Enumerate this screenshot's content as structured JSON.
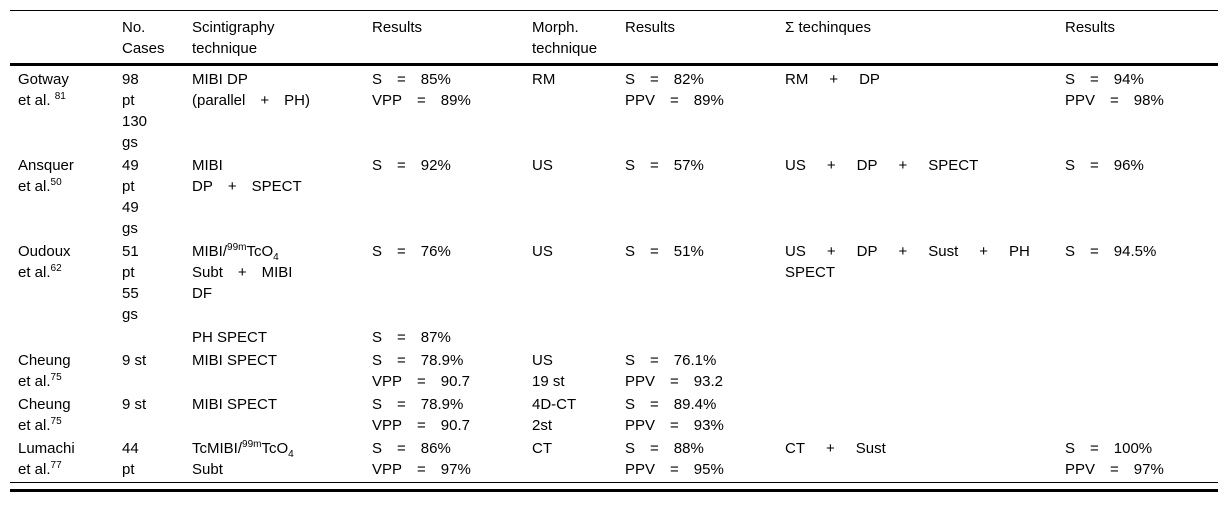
{
  "table": {
    "text_color": "#000000",
    "rule_color": "#000000",
    "column_keys": [
      "study",
      "cases",
      "scint",
      "res1",
      "morph",
      "res2",
      "sigma",
      "res3"
    ],
    "header": [
      [
        ""
      ],
      [
        "No.",
        "Cases"
      ],
      [
        "Scintigraphy",
        "technique"
      ],
      [
        "Results"
      ],
      [
        "Morph.",
        "technique"
      ],
      [
        "Results"
      ],
      [
        "Σ techinques"
      ],
      [
        "Results"
      ]
    ],
    "rows": [
      {
        "study": [
          "Gotway",
          [
            [
              {
                "t": "et al. "
              },
              {
                "t": "81",
                "v": "sup"
              }
            ]
          ]
        ],
        "cases": [
          "98",
          "pt",
          "130",
          "gs"
        ],
        "scint": [
          "MIBI DP",
          [
            "(parallel",
            "+",
            "PH)"
          ]
        ],
        "res1": [
          [
            "S",
            "=",
            "85%"
          ],
          [
            "VPP",
            "=",
            "89%"
          ]
        ],
        "morph": [
          "RM"
        ],
        "res2": [
          [
            "S",
            "=",
            "82%"
          ],
          [
            "PPV",
            "=",
            "89%"
          ]
        ],
        "sigma": [
          [
            "RM",
            "+",
            "DP"
          ]
        ],
        "res3": [
          [
            "S",
            "=",
            "94%"
          ],
          [
            "PPV",
            "=",
            "98%"
          ]
        ]
      },
      {
        "study": [
          "Ansquer",
          [
            [
              {
                "t": "et al."
              },
              {
                "t": "50",
                "v": "sup"
              }
            ]
          ]
        ],
        "cases": [
          "49",
          "pt",
          "49",
          "gs"
        ],
        "scint": [
          "MIBI",
          [
            "DP",
            "+",
            "SPECT"
          ]
        ],
        "res1": [
          [
            "S",
            "=",
            "92%"
          ]
        ],
        "morph": [
          "US"
        ],
        "res2": [
          [
            "S",
            "=",
            "57%"
          ]
        ],
        "sigma": [
          [
            "US",
            "+",
            "DP",
            "+",
            "SPECT"
          ]
        ],
        "res3": [
          [
            "S",
            "=",
            "96%"
          ]
        ]
      },
      {
        "study": [
          "Oudoux",
          [
            [
              {
                "t": "et al."
              },
              {
                "t": "62",
                "v": "sup"
              }
            ]
          ]
        ],
        "cases": [
          "51",
          "pt",
          "55",
          "gs"
        ],
        "scint": [
          [
            [
              {
                "t": "MIBI/"
              },
              {
                "t": "99m",
                "v": "sup"
              },
              {
                "t": "TcO"
              },
              {
                "t": "4",
                "v": "sub"
              }
            ]
          ],
          [
            "Subt",
            "+",
            "MIBI"
          ],
          "DF"
        ],
        "res1": [
          [
            "S",
            "=",
            "76%"
          ]
        ],
        "morph": [
          "US"
        ],
        "res2": [
          [
            "S",
            "=",
            "51%"
          ]
        ],
        "sigma": [
          [
            "US",
            "+",
            "DP",
            "+",
            "Sust",
            "+",
            "PH"
          ],
          "SPECT"
        ],
        "res3": [
          [
            "S",
            "=",
            "94.5%"
          ]
        ]
      },
      {
        "study": [],
        "cases": [],
        "scint": [
          "PH SPECT"
        ],
        "res1": [
          [
            "S",
            "=",
            "87%"
          ]
        ],
        "morph": [],
        "res2": [],
        "sigma": [],
        "res3": []
      },
      {
        "study": [
          "Cheung",
          [
            [
              {
                "t": "et al."
              },
              {
                "t": "75",
                "v": "sup"
              }
            ]
          ]
        ],
        "cases": [
          "9 st"
        ],
        "scint": [
          "MIBI SPECT"
        ],
        "res1": [
          [
            "S",
            "=",
            "78.9%"
          ],
          [
            "VPP",
            "=",
            "90.7"
          ]
        ],
        "morph": [
          "US",
          "19 st"
        ],
        "res2": [
          [
            "S",
            "=",
            "76.1%"
          ],
          [
            "PPV",
            "=",
            "93.2"
          ]
        ],
        "sigma": [],
        "res3": []
      },
      {
        "study": [
          "Cheung",
          [
            [
              {
                "t": "et al."
              },
              {
                "t": "75",
                "v": "sup"
              }
            ]
          ]
        ],
        "cases": [
          "9 st"
        ],
        "scint": [
          "MIBI SPECT"
        ],
        "res1": [
          [
            "S",
            "=",
            "78.9%"
          ],
          [
            "VPP",
            "=",
            "90.7"
          ]
        ],
        "morph": [
          "4D-CT",
          "2st"
        ],
        "res2": [
          [
            "S",
            "=",
            "89.4%"
          ],
          [
            "PPV",
            "=",
            "93%"
          ]
        ],
        "sigma": [],
        "res3": []
      },
      {
        "study": [
          "Lumachi",
          [
            [
              {
                "t": "et al."
              },
              {
                "t": "77",
                "v": "sup"
              }
            ]
          ]
        ],
        "cases": [
          "44",
          "pt"
        ],
        "scint": [
          [
            [
              {
                "t": "TcMIBI/"
              },
              {
                "t": "99m",
                "v": "sup"
              },
              {
                "t": "TcO"
              },
              {
                "t": "4",
                "v": "sub"
              }
            ]
          ],
          "Subt"
        ],
        "res1": [
          [
            "S",
            "=",
            "86%"
          ],
          [
            "VPP",
            "=",
            "97%"
          ]
        ],
        "morph": [
          "CT"
        ],
        "res2": [
          [
            "S",
            "=",
            "88%"
          ],
          [
            "PPV",
            "=",
            "95%"
          ]
        ],
        "sigma": [
          [
            "CT",
            "+",
            "Sust"
          ]
        ],
        "res3": [
          [
            "S",
            "=",
            "100%"
          ],
          [
            "PPV",
            "=",
            "97%"
          ]
        ]
      }
    ]
  }
}
